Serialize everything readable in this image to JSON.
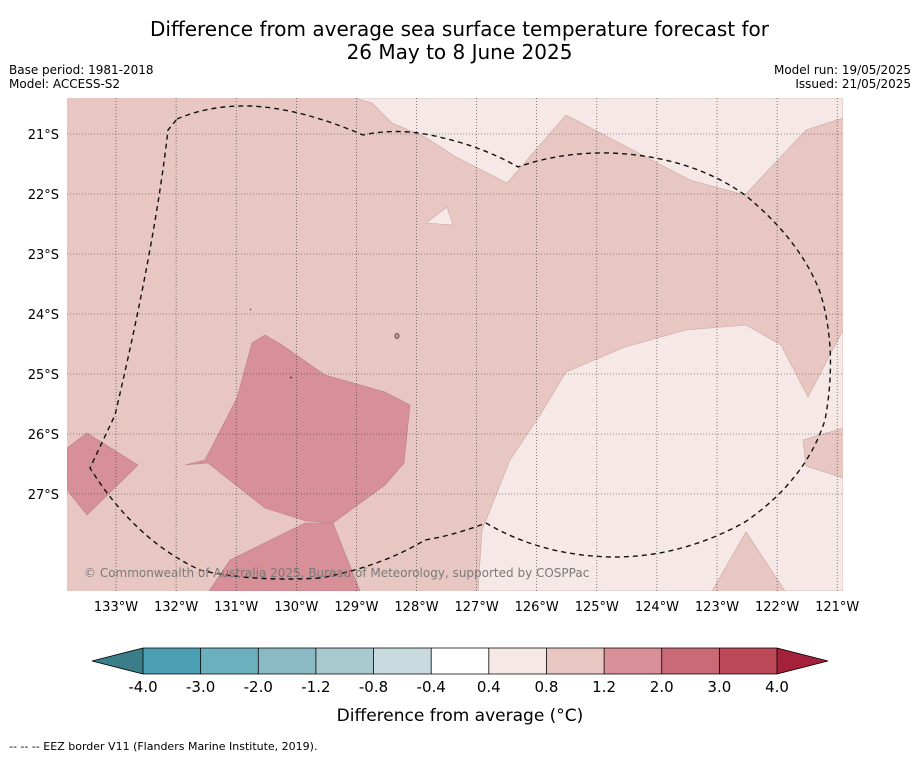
{
  "title": {
    "line1": "Difference from average sea surface temperature forecast for",
    "line2": "26 May to 8 June 2025"
  },
  "meta": {
    "base_period": "Base period: 1981-2018",
    "model": "Model: ACCESS-S2",
    "model_run": "Model run: 19/05/2025",
    "issued": "Issued: 21/05/2025"
  },
  "map": {
    "lat_labels": [
      "21°S",
      "22°S",
      "23°S",
      "24°S",
      "25°S",
      "26°S",
      "27°S"
    ],
    "lon_labels": [
      "133°W",
      "132°W",
      "131°W",
      "130°W",
      "129°W",
      "128°W",
      "127°W",
      "126°W",
      "125°W",
      "124°W",
      "123°W",
      "122°W",
      "121°W"
    ],
    "copyright": "© Commonwealth of Australia 2025, Bureau of Meteorology, supported by COSPPac",
    "fill_colors": {
      "c04_08": "#f5e8e7",
      "c08_12": "#e8c7c3",
      "c12_20": "#d78f98"
    }
  },
  "colorbar": {
    "tick_labels": [
      "-4.0",
      "-3.0",
      "-2.0",
      "-1.2",
      "-0.8",
      "-0.4",
      "0.4",
      "0.8",
      "1.2",
      "2.0",
      "3.0",
      "4.0"
    ],
    "segment_colors": [
      "#4aa0b2",
      "#6cb0bd",
      "#8bbac5",
      "#a8c9cd",
      "#c8dadd",
      "#ffffff",
      "#f5e8e7",
      "#e8c7c3",
      "#d78f98",
      "#ca6a76",
      "#bd4858"
    ],
    "extend_low_color": "#3a7e8a",
    "extend_high_color": "#a5203a",
    "label": "Difference from average (°C)"
  },
  "footnote": "--  --  -- EEZ border V11 (Flanders Marine Institute, 2019)."
}
